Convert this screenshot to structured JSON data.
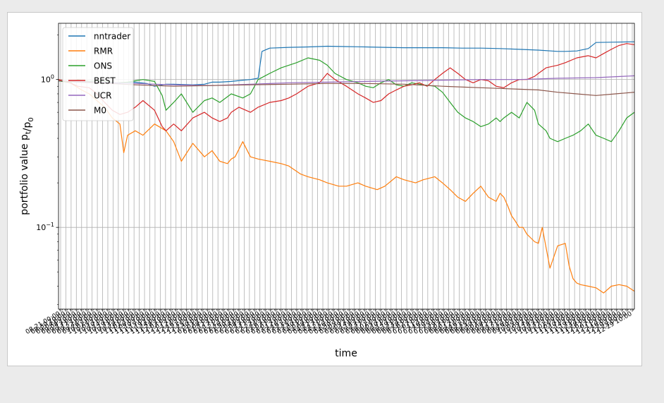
{
  "chart_data": {
    "type": "line",
    "xlabel": "time",
    "ylabel": "portfolio value p_t/p_0",
    "yscale": "log",
    "ylim": [
      0.028,
      2.4
    ],
    "xlim": [
      0,
      150
    ],
    "grid": true,
    "legend_position": "top-left",
    "yticks": [
      {
        "value": 1,
        "base": "10",
        "exp": "0"
      },
      {
        "value": 0.1,
        "base": "10",
        "exp": "−1"
      }
    ],
    "x_tick_labels": [
      "08-21 00:00",
      "08-30 10:00",
      "09-04 00:00",
      "09-08 10:00",
      "09-13 00:00",
      "09-17 10:00",
      "09-22 00:00",
      "09-26 10:00",
      "10-01 00:00",
      "10-05 10:00",
      "10-10 00:00",
      "10-14 10:00",
      "10-19 00:00",
      "10-23 10:00",
      "10-28 00:00",
      "11-01 10:00",
      "11-06 00:00",
      "11-10 10:00",
      "11-15 00:00",
      "11-19 10:00",
      "11-24 00:00",
      "11-28 10:00",
      "12-03 00:00",
      "12-07 10:00",
      "12-12 00:00",
      "12-16 10:00",
      "12-21 00:00",
      "12-25 10:00",
      "12-30 00:00",
      "01-03 10:00",
      "01-08 00:00",
      "01-12 10:00",
      "01-17 00:00",
      "01-21 10:00",
      "01-26 00:00",
      "01-30 10:00",
      "02-04 00:00",
      "02-08 10:00",
      "02-13 00:00",
      "02-17 10:00",
      "02-22 00:00",
      "02-26 10:00",
      "03-03 00:00",
      "03-07 10:00",
      "03-12 00:00",
      "03-16 10:00",
      "03-21 00:00",
      "03-25 10:00",
      "03-30 00:00",
      "04-03 10:00",
      "04-08 00:00",
      "04-12 10:00",
      "04-17 00:00",
      "04-21 10:00",
      "04-26 00:00",
      "04-30 10:00",
      "05-05 00:00",
      "05-09 10:00",
      "05-14 00:00",
      "05-18 10:00",
      "05-23 00:00",
      "05-27 10:00",
      "06-01 00:00",
      "06-05 10:00",
      "06-10 00:00",
      "06-14 10:00",
      "06-19 00:00",
      "06-23 10:00",
      "06-28 00:00",
      "07-02 10:00",
      "07-07 00:00",
      "07-11 10:00",
      "07-16 00:00",
      "07-20 10:00",
      "07-25 00:00",
      "07-29 10:00",
      "08-03 00:00",
      "08-07 10:00",
      "08-12 00:00",
      "08-16 10:00",
      "08-21 00:00",
      "08-25 10:00",
      "08-30 00:00",
      "09-03 10:00",
      "09-08 00:00",
      "09-12 10:00",
      "09-17 00:00",
      "09-21 10:00",
      "09-26 00:00",
      "09-30 10:00",
      "10-05 00:00",
      "10-09 10:00",
      "10-14 00:00",
      "10-18 10:00",
      "10-23 00:00",
      "10-27 10:00",
      "11-01 00:00",
      "11-05 10:00",
      "11-10 00:00",
      "11-14 10:00",
      "11-19 00:00",
      "11-23 10:00",
      "11-28 00:00",
      "12-02 10:00",
      "12-07 00:00",
      "12-11 10:00",
      "12-16 00:00",
      "12-20 10:00",
      "12-25 00:00",
      "12-29 10:00"
    ],
    "series": [
      {
        "name": "nntrader",
        "color": "#1f77b4",
        "x": [
          0,
          5,
          10,
          15,
          20,
          23,
          25,
          28,
          30,
          35,
          38,
          40,
          42,
          45,
          48,
          50,
          52,
          53,
          55,
          60,
          65,
          70,
          75,
          80,
          85,
          90,
          95,
          100,
          105,
          110,
          115,
          120,
          125,
          130,
          132,
          135,
          138,
          140,
          145,
          150
        ],
        "y": [
          0.98,
          0.96,
          0.95,
          0.94,
          0.96,
          0.94,
          0.9,
          0.93,
          0.93,
          0.92,
          0.93,
          0.96,
          0.96,
          0.97,
          0.99,
          1.0,
          1.02,
          1.55,
          1.63,
          1.65,
          1.66,
          1.68,
          1.67,
          1.66,
          1.65,
          1.64,
          1.64,
          1.64,
          1.63,
          1.63,
          1.62,
          1.6,
          1.58,
          1.55,
          1.55,
          1.56,
          1.62,
          1.78,
          1.79,
          1.8
        ]
      },
      {
        "name": "RMR",
        "color": "#ff7f0e",
        "x": [
          0,
          3,
          6,
          8,
          10,
          12,
          14,
          16,
          17,
          18,
          20,
          22,
          25,
          28,
          30,
          32,
          35,
          38,
          40,
          42,
          44,
          45,
          46,
          48,
          50,
          52,
          55,
          58,
          60,
          63,
          65,
          68,
          70,
          73,
          75,
          78,
          80,
          83,
          85,
          88,
          90,
          93,
          95,
          98,
          100,
          102,
          104,
          106,
          108,
          110,
          112,
          114,
          115,
          116,
          117,
          118,
          119,
          120,
          121,
          122,
          123,
          124,
          125,
          126,
          128,
          130,
          132,
          133,
          134,
          135,
          136,
          138,
          140,
          142,
          144,
          146,
          148,
          150
        ],
        "y": [
          1.0,
          0.95,
          0.85,
          0.8,
          0.72,
          0.65,
          0.55,
          0.5,
          0.32,
          0.42,
          0.45,
          0.42,
          0.5,
          0.45,
          0.38,
          0.28,
          0.37,
          0.3,
          0.33,
          0.28,
          0.27,
          0.29,
          0.3,
          0.38,
          0.3,
          0.29,
          0.28,
          0.27,
          0.26,
          0.23,
          0.22,
          0.21,
          0.2,
          0.19,
          0.19,
          0.2,
          0.19,
          0.18,
          0.19,
          0.22,
          0.21,
          0.2,
          0.21,
          0.22,
          0.2,
          0.18,
          0.16,
          0.15,
          0.17,
          0.19,
          0.16,
          0.15,
          0.17,
          0.16,
          0.14,
          0.12,
          0.11,
          0.1,
          0.1,
          0.09,
          0.085,
          0.08,
          0.078,
          0.1,
          0.053,
          0.075,
          0.078,
          0.055,
          0.045,
          0.042,
          0.041,
          0.04,
          0.039,
          0.036,
          0.04,
          0.041,
          0.04,
          0.037
        ]
      },
      {
        "name": "ONS",
        "color": "#2ca02c",
        "x": [
          0,
          3,
          5,
          8,
          10,
          12,
          15,
          18,
          20,
          22,
          25,
          27,
          28,
          30,
          32,
          35,
          38,
          40,
          42,
          45,
          48,
          50,
          52,
          55,
          58,
          60,
          62,
          65,
          68,
          70,
          72,
          75,
          78,
          80,
          82,
          84,
          86,
          88,
          90,
          92,
          95,
          98,
          100,
          102,
          104,
          106,
          108,
          110,
          112,
          114,
          115,
          116,
          118,
          120,
          122,
          124,
          125,
          127,
          128,
          130,
          132,
          134,
          136,
          138,
          140,
          142,
          144,
          146,
          148,
          150
        ],
        "y": [
          0.98,
          0.95,
          1.0,
          0.97,
          0.98,
          0.97,
          0.95,
          0.96,
          0.98,
          1.0,
          0.97,
          0.78,
          0.62,
          0.7,
          0.8,
          0.6,
          0.72,
          0.75,
          0.7,
          0.8,
          0.75,
          0.8,
          1.0,
          1.1,
          1.2,
          1.25,
          1.3,
          1.4,
          1.35,
          1.25,
          1.1,
          1.0,
          0.95,
          0.9,
          0.88,
          0.95,
          1.0,
          0.92,
          0.9,
          0.95,
          0.92,
          0.9,
          0.82,
          0.7,
          0.6,
          0.55,
          0.52,
          0.48,
          0.5,
          0.55,
          0.52,
          0.55,
          0.6,
          0.55,
          0.7,
          0.62,
          0.5,
          0.45,
          0.4,
          0.38,
          0.4,
          0.42,
          0.45,
          0.5,
          0.42,
          0.4,
          0.38,
          0.45,
          0.55,
          0.6
        ]
      },
      {
        "name": "BEST",
        "color": "#d62728",
        "x": [
          0,
          3,
          5,
          8,
          10,
          12,
          14,
          16,
          18,
          20,
          22,
          25,
          27,
          28,
          30,
          32,
          35,
          38,
          40,
          42,
          44,
          45,
          47,
          50,
          52,
          55,
          58,
          60,
          62,
          65,
          68,
          70,
          72,
          75,
          78,
          80,
          82,
          84,
          86,
          88,
          90,
          92,
          94,
          96,
          98,
          100,
          102,
          104,
          106,
          108,
          110,
          112,
          114,
          116,
          118,
          120,
          122,
          124,
          125,
          127,
          130,
          132,
          135,
          138,
          140,
          142,
          144,
          146,
          148,
          150
        ],
        "y": [
          1.0,
          0.95,
          0.9,
          0.88,
          0.8,
          0.7,
          0.62,
          0.58,
          0.6,
          0.65,
          0.72,
          0.62,
          0.48,
          0.45,
          0.5,
          0.45,
          0.55,
          0.6,
          0.55,
          0.52,
          0.55,
          0.6,
          0.65,
          0.6,
          0.65,
          0.7,
          0.72,
          0.75,
          0.8,
          0.9,
          0.95,
          1.1,
          1.0,
          0.9,
          0.8,
          0.75,
          0.7,
          0.72,
          0.8,
          0.85,
          0.9,
          0.92,
          0.95,
          0.9,
          1.0,
          1.1,
          1.2,
          1.1,
          1.0,
          0.95,
          1.0,
          0.98,
          0.9,
          0.88,
          0.95,
          1.0,
          1.0,
          1.05,
          1.1,
          1.2,
          1.25,
          1.3,
          1.4,
          1.45,
          1.4,
          1.5,
          1.6,
          1.7,
          1.75,
          1.72
        ]
      },
      {
        "name": "UCR",
        "color": "#9467bd",
        "x": [
          0,
          10,
          20,
          30,
          40,
          50,
          60,
          70,
          80,
          90,
          100,
          110,
          120,
          130,
          140,
          150
        ],
        "y": [
          0.98,
          0.96,
          0.94,
          0.92,
          0.91,
          0.93,
          0.95,
          0.96,
          0.97,
          0.98,
          0.99,
          1.0,
          1.0,
          1.02,
          1.03,
          1.06
        ]
      },
      {
        "name": "M0",
        "color": "#8c564b",
        "x": [
          0,
          10,
          20,
          30,
          40,
          50,
          60,
          70,
          80,
          90,
          100,
          110,
          115,
          120,
          125,
          130,
          135,
          140,
          145,
          150
        ],
        "y": [
          0.98,
          0.95,
          0.92,
          0.9,
          0.91,
          0.92,
          0.93,
          0.94,
          0.94,
          0.93,
          0.9,
          0.88,
          0.87,
          0.86,
          0.85,
          0.82,
          0.8,
          0.78,
          0.8,
          0.82
        ]
      }
    ]
  }
}
